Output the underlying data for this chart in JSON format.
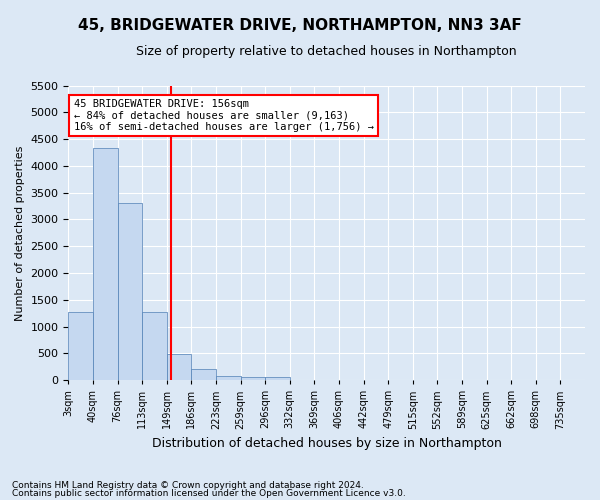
{
  "title": "45, BRIDGEWATER DRIVE, NORTHAMPTON, NN3 3AF",
  "subtitle": "Size of property relative to detached houses in Northampton",
  "xlabel": "Distribution of detached houses by size in Northampton",
  "ylabel": "Number of detached properties",
  "footnote1": "Contains HM Land Registry data © Crown copyright and database right 2024.",
  "footnote2": "Contains public sector information licensed under the Open Government Licence v3.0.",
  "bin_labels": [
    "3sqm",
    "40sqm",
    "76sqm",
    "113sqm",
    "149sqm",
    "186sqm",
    "223sqm",
    "259sqm",
    "296sqm",
    "332sqm",
    "369sqm",
    "406sqm",
    "442sqm",
    "479sqm",
    "515sqm",
    "552sqm",
    "589sqm",
    "625sqm",
    "662sqm",
    "698sqm",
    "735sqm"
  ],
  "bar_heights": [
    1270,
    4330,
    3300,
    1280,
    480,
    210,
    80,
    60,
    55,
    0,
    0,
    0,
    0,
    0,
    0,
    0,
    0,
    0,
    0,
    0
  ],
  "bar_color": "#c5d8f0",
  "bar_edge_color": "#4f7fb5",
  "background_color": "#dce8f5",
  "grid_color": "#ffffff",
  "annotation_text_line1": "45 BRIDGEWATER DRIVE: 156sqm",
  "annotation_text_line2": "← 84% of detached houses are smaller (9,163)",
  "annotation_text_line3": "16% of semi-detached houses are larger (1,756) →",
  "ylim": [
    0,
    5500
  ],
  "yticks": [
    0,
    500,
    1000,
    1500,
    2000,
    2500,
    3000,
    3500,
    4000,
    4500,
    5000,
    5500
  ],
  "title_fontsize": 11,
  "subtitle_fontsize": 9
}
